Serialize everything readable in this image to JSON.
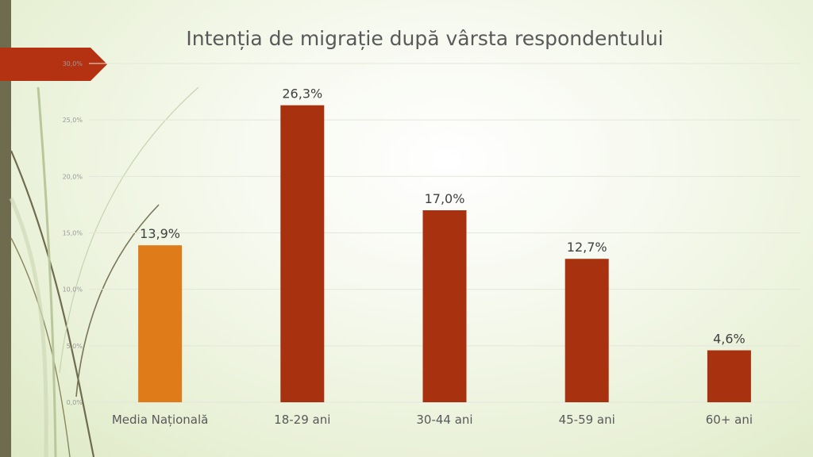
{
  "colors": {
    "accent": "#e07b1a",
    "bar": "#a83210",
    "tab": "#b43212",
    "side_bar": "#6f6b4f",
    "grid": "#e3e7da"
  },
  "chart_data": {
    "type": "bar",
    "title": "Intenția de migrație după vârsta respondentului",
    "categories": [
      "Media Națională",
      "18-29 ani",
      "30-44 ani",
      "45-59 ani",
      "60+ ani"
    ],
    "values": [
      13.9,
      26.3,
      17.0,
      12.7,
      4.6
    ],
    "data_labels": [
      "13,9%",
      "26,3%",
      "17,0%",
      "12,7%",
      "4,6%"
    ],
    "highlight_index": 0,
    "ylim": [
      0,
      30
    ],
    "yticks": [
      0,
      5,
      10,
      15,
      20,
      25,
      30
    ],
    "ytick_labels": [
      "0,0%",
      "5,0%",
      "10,0%",
      "15,0%",
      "20,0%",
      "25,0%",
      "30,0%"
    ],
    "grid": true,
    "legend": "none",
    "xlabel": "",
    "ylabel": ""
  }
}
